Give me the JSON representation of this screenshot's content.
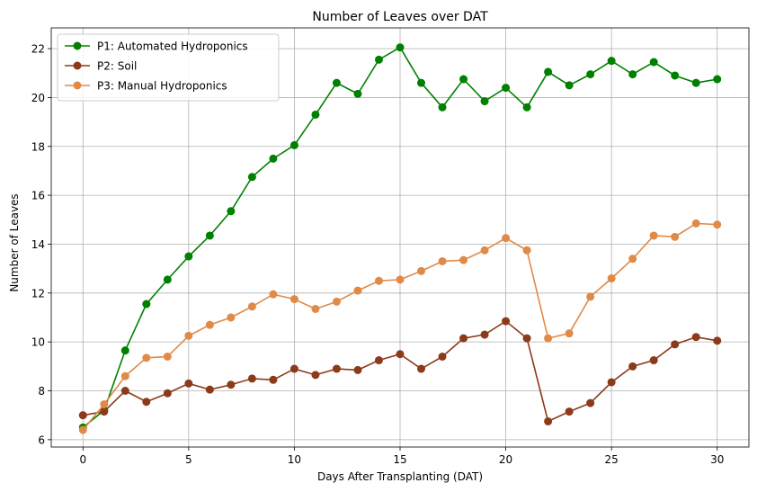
{
  "chart_data": {
    "type": "line",
    "title": "Number of Leaves over DAT",
    "xlabel": "Days After Transplanting (DAT)",
    "ylabel": "Number of Leaves",
    "xlim": [
      -1.5,
      31.5
    ],
    "ylim": [
      5.7,
      22.85
    ],
    "xticks": [
      0,
      5,
      10,
      15,
      20,
      25,
      30
    ],
    "yticks": [
      6,
      8,
      10,
      12,
      14,
      16,
      18,
      20,
      22
    ],
    "grid": true,
    "legend_position": "top-left",
    "x": [
      0,
      1,
      2,
      3,
      4,
      5,
      6,
      7,
      8,
      9,
      10,
      11,
      12,
      13,
      14,
      15,
      16,
      17,
      18,
      19,
      20,
      21,
      22,
      23,
      24,
      25,
      26,
      27,
      28,
      29,
      30
    ],
    "series": [
      {
        "name": "P1: Automated Hydroponics",
        "color": "#008000",
        "values": [
          6.5,
          7.2,
          9.65,
          11.55,
          12.55,
          13.5,
          14.35,
          15.35,
          16.75,
          17.5,
          18.05,
          19.3,
          20.6,
          20.15,
          21.55,
          22.05,
          20.6,
          19.6,
          20.75,
          19.85,
          20.4,
          19.6,
          21.05,
          20.5,
          20.95,
          21.5,
          20.95,
          21.45,
          20.9,
          20.6,
          20.75
        ]
      },
      {
        "name": "P2: Soil",
        "color": "#8b3a1a",
        "values": [
          7.0,
          7.15,
          8.0,
          7.55,
          7.9,
          8.3,
          8.05,
          8.25,
          8.5,
          8.45,
          8.9,
          8.65,
          8.9,
          8.85,
          9.25,
          9.5,
          8.9,
          9.4,
          10.15,
          10.3,
          10.85,
          10.15,
          6.75,
          7.15,
          7.5,
          8.35,
          9.0,
          9.25,
          9.9,
          10.2,
          10.05
        ]
      },
      {
        "name": "P3: Manual Hydroponics",
        "color": "#e08a48",
        "values": [
          6.4,
          7.45,
          8.6,
          9.35,
          9.4,
          10.25,
          10.7,
          11.0,
          11.45,
          11.95,
          11.75,
          11.35,
          11.65,
          12.1,
          12.5,
          12.55,
          12.9,
          13.3,
          13.35,
          13.75,
          14.25,
          13.75,
          10.15,
          10.35,
          11.85,
          12.6,
          13.4,
          14.35,
          14.3,
          14.85,
          14.8
        ]
      }
    ]
  }
}
